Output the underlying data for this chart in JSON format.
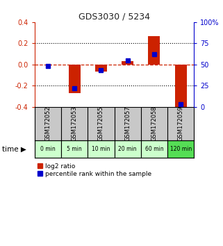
{
  "title": "GDS3030 / 5234",
  "samples": [
    "GSM172052",
    "GSM172053",
    "GSM172055",
    "GSM172057",
    "GSM172058",
    "GSM172059"
  ],
  "time_labels": [
    "0 min",
    "5 min",
    "10 min",
    "20 min",
    "60 min",
    "120 min"
  ],
  "log2_ratio": [
    0.0,
    -0.27,
    -0.07,
    0.03,
    0.27,
    -0.42
  ],
  "percentile_rank": [
    48,
    22,
    43,
    55,
    62,
    3
  ],
  "ylim_left": [
    -0.4,
    0.4
  ],
  "ylim_right": [
    0,
    100
  ],
  "bar_color": "#cc2200",
  "dot_color": "#0000cc",
  "bg_color_gsm": "#c8c8c8",
  "bg_color_time_light": "#ccffcc",
  "bg_color_time_dark": "#55dd55",
  "title_color": "#222222",
  "left_axis_color": "#cc2200",
  "right_axis_color": "#0000cc",
  "yticks_left": [
    -0.4,
    -0.2,
    0.0,
    0.2,
    0.4
  ],
  "yticks_right": [
    0,
    25,
    50,
    75,
    100
  ],
  "ytick_labels_right": [
    "0",
    "25",
    "50",
    "75",
    "100%"
  ]
}
